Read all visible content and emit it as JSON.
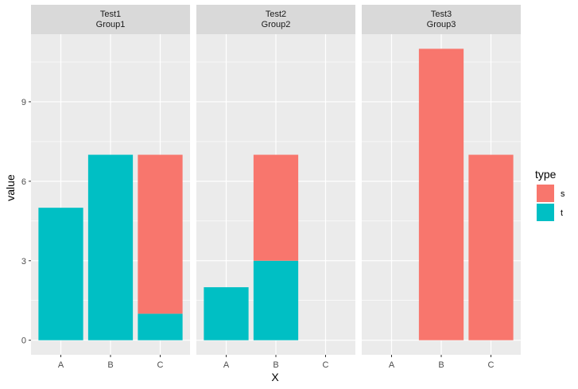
{
  "chart_data": {
    "type": "bar",
    "stacked": true,
    "facets": [
      {
        "strip": [
          "Test1",
          "Group1"
        ],
        "categories": [
          "A",
          "B",
          "C"
        ],
        "series": [
          {
            "name": "t",
            "values": [
              5,
              7,
              1
            ]
          },
          {
            "name": "s",
            "values": [
              0,
              0,
              6
            ]
          }
        ]
      },
      {
        "strip": [
          "Test2",
          "Group2"
        ],
        "categories": [
          "A",
          "B",
          "C"
        ],
        "series": [
          {
            "name": "t",
            "values": [
              2,
              3,
              0
            ]
          },
          {
            "name": "s",
            "values": [
              0,
              4,
              0
            ]
          }
        ]
      },
      {
        "strip": [
          "Test3",
          "Group3"
        ],
        "categories": [
          "A",
          "B",
          "C"
        ],
        "series": [
          {
            "name": "t",
            "values": [
              0,
              0,
              0
            ]
          },
          {
            "name": "s",
            "values": [
              0,
              11,
              7
            ]
          }
        ]
      }
    ],
    "xlabel": "X",
    "ylabel": "value",
    "yticks": [
      0,
      3,
      6,
      9
    ],
    "ylim": [
      -0.55,
      11.55
    ],
    "grid": true,
    "legend": {
      "title": "type",
      "position": "right",
      "entries": [
        {
          "name": "s",
          "color": "#F8766D"
        },
        {
          "name": "t",
          "color": "#00BFC4"
        }
      ]
    },
    "colors": {
      "s": "#F8766D",
      "t": "#00BFC4",
      "panel": "#EBEBEB",
      "strip": "#D9D9D9"
    }
  }
}
